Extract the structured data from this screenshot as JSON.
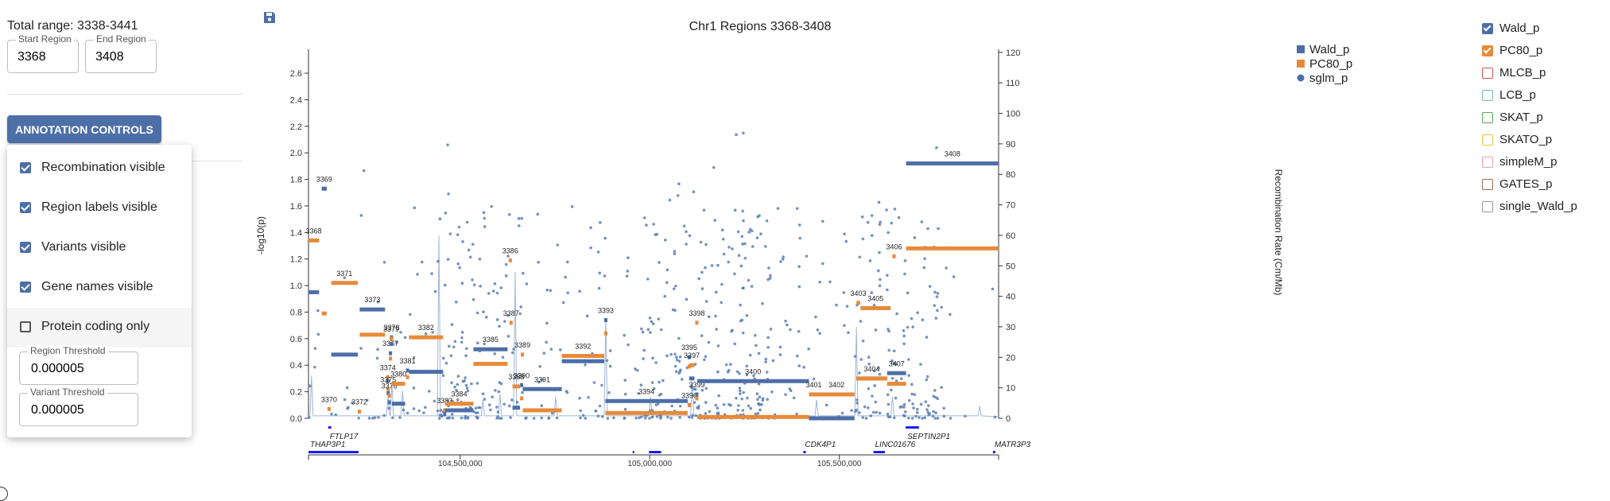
{
  "sidebar": {
    "total_range_text": "Total range: 3338-3441",
    "start_region_label": "Start Region",
    "start_region_value": "3368",
    "end_region_label": "End Region",
    "end_region_value": "3408",
    "annotation_button": "ANNOTATION CONTROLS",
    "menu": {
      "items": [
        {
          "label": "Recombination visible",
          "checked": true
        },
        {
          "label": "Region labels visible",
          "checked": true
        },
        {
          "label": "Variants visible",
          "checked": true
        },
        {
          "label": "Gene names visible",
          "checked": true
        },
        {
          "label": "Protein coding only",
          "checked": false
        }
      ],
      "region_threshold_label": "Region Threshold",
      "region_threshold_value": "0.000005",
      "variant_threshold_label": "Variant Threshold",
      "variant_threshold_value": "0.000005"
    }
  },
  "right_legend": {
    "items": [
      {
        "label": "Wald_p",
        "checked": true,
        "color": "#4d6fa8"
      },
      {
        "label": "PC80_p",
        "checked": true,
        "color": "#e88a3a"
      },
      {
        "label": "MLCB_p",
        "checked": false,
        "color": "#e05050"
      },
      {
        "label": "LCB_p",
        "checked": false,
        "color": "#6fbfb0"
      },
      {
        "label": "SKAT_p",
        "checked": false,
        "color": "#58a858"
      },
      {
        "label": "SKATO_p",
        "checked": false,
        "color": "#e8c23a"
      },
      {
        "label": "simpleM_p",
        "checked": false,
        "color": "#f0a0b0"
      },
      {
        "label": "GATES_p",
        "checked": false,
        "color": "#9a6a4a"
      },
      {
        "label": "single_Wald_p",
        "checked": false,
        "color": "#999999"
      }
    ]
  },
  "icons": {
    "save": "save-icon"
  },
  "chart_data": {
    "type": "scatter",
    "title": "Chr1 Regions 3368-3408",
    "ylabel": "-log10(p)",
    "y2label": "Recombination Rate (Cm/Mb)",
    "ylim": [
      0,
      2.78
    ],
    "yticks": [
      "0.0",
      "0.2",
      "0.4",
      "0.6",
      "0.8",
      "1.0",
      "1.2",
      "1.4",
      "1.6",
      "1.8",
      "2.0",
      "2.2",
      "2.4",
      "2.6"
    ],
    "y2lim": [
      0,
      121
    ],
    "y2ticks": [
      "0",
      "10",
      "20",
      "30",
      "40",
      "50",
      "60",
      "70",
      "80",
      "90",
      "100",
      "110",
      "120"
    ],
    "xlim": [
      104100000,
      105920000
    ],
    "xticks": [
      {
        "value": 104500000,
        "label": "104,500,000"
      },
      {
        "value": 105000000,
        "label": "105,000,000"
      },
      {
        "value": 105500000,
        "label": "105,500,000"
      }
    ],
    "legend": [
      {
        "name": "Wald_p",
        "color": "#4d6fa8",
        "shape": "square"
      },
      {
        "name": "PC80_p",
        "color": "#e88a3a",
        "shape": "square"
      },
      {
        "name": "sglm_p",
        "color": "#4d6fa8",
        "shape": "circle"
      }
    ],
    "regions": [
      {
        "label": "3368",
        "start": 104100000,
        "end": 104128000,
        "wald": 0.95,
        "pc80": 1.34
      },
      {
        "label": "3369",
        "start": 104135000,
        "end": 104148000,
        "wald": 1.73,
        "pc80": 0.79
      },
      {
        "label": "3370",
        "start": 104150000,
        "end": 104155000,
        "wald": null,
        "pc80": 0.07
      },
      {
        "label": "3371",
        "start": 104160000,
        "end": 104230000,
        "wald": 0.48,
        "pc80": 1.02
      },
      {
        "label": "3372",
        "start": 104230000,
        "end": 104235000,
        "wald": null,
        "pc80": 0.05
      },
      {
        "label": "3373",
        "start": 104235000,
        "end": 104302000,
        "wald": 0.82,
        "pc80": 0.63
      },
      {
        "label": "3374",
        "start": 104305000,
        "end": 104309000,
        "wald": 0.28,
        "pc80": 0.31
      },
      {
        "label": "3375",
        "start": 104306000,
        "end": 104310000,
        "wald": 0.19,
        "pc80": 0.22
      },
      {
        "label": "3376",
        "start": 104309000,
        "end": 104313000,
        "wald": 0.12,
        "pc80": 0.17
      },
      {
        "label": "3377",
        "start": 104312000,
        "end": 104316000,
        "wald": 0.49,
        "pc80": 0.45
      },
      {
        "label": "3378",
        "start": 104315000,
        "end": 104318000,
        "wald": 0.61,
        "pc80": 0.56
      },
      {
        "label": "3379",
        "start": 104314000,
        "end": 104318000,
        "wald": 0.56,
        "pc80": 0.6
      },
      {
        "label": "3380",
        "start": 104320000,
        "end": 104355000,
        "wald": 0.11,
        "pc80": 0.26
      },
      {
        "label": "3381",
        "start": 104357000,
        "end": 104365000,
        "wald": 0.36,
        "pc80": 0.31
      },
      {
        "label": "3382",
        "start": 104365000,
        "end": 104455000,
        "wald": 0.35,
        "pc80": 0.61
      },
      {
        "label": "3383",
        "start": 104455000,
        "end": 104462000,
        "wald": 0.03,
        "pc80": 0.06
      },
      {
        "label": "3384",
        "start": 104460000,
        "end": 104535000,
        "wald": 0.06,
        "pc80": 0.11
      },
      {
        "label": "3385",
        "start": 104535000,
        "end": 104625000,
        "wald": 0.52,
        "pc80": 0.41
      },
      {
        "label": "3386",
        "start": 104628000,
        "end": 104633000,
        "wald": null,
        "pc80": 1.19
      },
      {
        "label": "3387",
        "start": 104630000,
        "end": 104635000,
        "wald": null,
        "pc80": 0.72
      },
      {
        "label": "3388",
        "start": 104638000,
        "end": 104658000,
        "wald": 0.08,
        "pc80": 0.24
      },
      {
        "label": "3389",
        "start": 104660000,
        "end": 104664000,
        "wald": null,
        "pc80": 0.48
      },
      {
        "label": "3390",
        "start": 104658000,
        "end": 104665000,
        "wald": 0.25,
        "pc80": 0.15
      },
      {
        "label": "3391",
        "start": 104665000,
        "end": 104768000,
        "wald": 0.22,
        "pc80": 0.06
      },
      {
        "label": "3392",
        "start": 104768000,
        "end": 104880000,
        "wald": 0.43,
        "pc80": 0.47
      },
      {
        "label": "3393",
        "start": 104880000,
        "end": 104883000,
        "wald": 0.74,
        "pc80": 0.64
      },
      {
        "label": "3394",
        "start": 104883000,
        "end": 105100000,
        "wald": 0.13,
        "pc80": 0.04
      },
      {
        "label": "3395",
        "start": 105100000,
        "end": 105103000,
        "wald": 0.46,
        "pc80": 0.39
      },
      {
        "label": "3396",
        "start": 105100000,
        "end": 105104000,
        "wald": 0.1,
        "pc80": 0.1
      },
      {
        "label": "3397",
        "start": 105104000,
        "end": 105118000,
        "wald": 0.3,
        "pc80": 0.4
      },
      {
        "label": "3398",
        "start": 105120000,
        "end": 105123000,
        "wald": null,
        "pc80": 0.72
      },
      {
        "label": "3399",
        "start": 105120000,
        "end": 105125000,
        "wald": 0.18,
        "pc80": 0.15
      },
      {
        "label": "3400",
        "start": 105125000,
        "end": 105420000,
        "wald": 0.28,
        "pc80": 0.01
      },
      {
        "label": "3401",
        "start": 105420000,
        "end": 105445000,
        "wald": 0.0,
        "pc80": 0.18
      },
      {
        "label": "3402",
        "start": 105445000,
        "end": 105540000,
        "wald": 0.0,
        "pc80": 0.18
      },
      {
        "label": "3403",
        "start": 105545000,
        "end": 105555000,
        "wald": null,
        "pc80": 0.87
      },
      {
        "label": "3404",
        "start": 105545000,
        "end": 105626000,
        "wald": 0.3,
        "pc80": 0.3
      },
      {
        "label": "3405",
        "start": 105556000,
        "end": 105635000,
        "wald": 0.83,
        "pc80": 0.83
      },
      {
        "label": "3406",
        "start": 105640000,
        "end": 105646000,
        "wald": null,
        "pc80": 1.22
      },
      {
        "label": "3407",
        "start": 105626000,
        "end": 105676000,
        "wald": 0.34,
        "pc80": 0.26
      },
      {
        "label": "3408",
        "start": 105676000,
        "end": 105920000,
        "wald": 1.92,
        "pc80": 1.28
      }
    ],
    "recombination_peaks": [
      {
        "x": 104108000,
        "y": 14
      },
      {
        "x": 104310000,
        "y": 8
      },
      {
        "x": 104320000,
        "y": 12
      },
      {
        "x": 104348000,
        "y": 9
      },
      {
        "x": 104444000,
        "y": 60
      },
      {
        "x": 104560000,
        "y": 6
      },
      {
        "x": 104605000,
        "y": 8
      },
      {
        "x": 104645000,
        "y": 48
      },
      {
        "x": 104752000,
        "y": 7
      },
      {
        "x": 104884000,
        "y": 33
      },
      {
        "x": 105002000,
        "y": 7
      },
      {
        "x": 105112000,
        "y": 12
      },
      {
        "x": 105440000,
        "y": 6
      },
      {
        "x": 105545000,
        "y": 30
      },
      {
        "x": 105640000,
        "y": 7
      },
      {
        "x": 105870000,
        "y": 4
      }
    ],
    "genes": [
      {
        "name": "FTLP17",
        "start": 104152000,
        "end": 104160000,
        "row": 0
      },
      {
        "name": "THAP3P1",
        "start": 104100000,
        "end": 104232000,
        "row": 1
      },
      {
        "name": "CDK4P1",
        "start": 105405000,
        "end": 105408000,
        "row": 1
      },
      {
        "name": "LINC01676",
        "start": 105590000,
        "end": 105620000,
        "row": 1
      },
      {
        "name": "SEPTIN2P1",
        "start": 105675000,
        "end": 105710000,
        "row": 0
      },
      {
        "name": "MATR3P3",
        "start": 105905000,
        "end": 105908000,
        "row": 1
      }
    ],
    "gene_marks": [
      {
        "start": 104955000,
        "end": 104957000
      },
      {
        "start": 104998000,
        "end": 105030000
      }
    ],
    "variants_note_count": 1400,
    "grid": false
  }
}
